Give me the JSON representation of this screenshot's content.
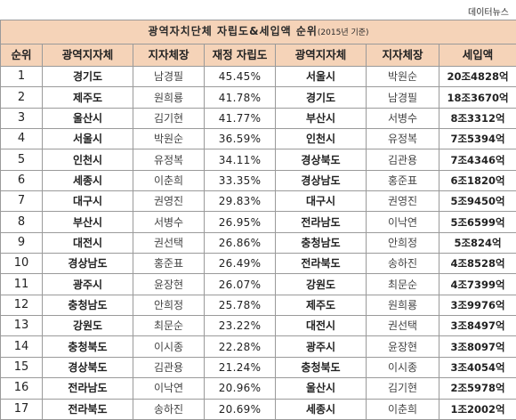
{
  "source_label": "데이터뉴스",
  "title": "광역자치단체 자립도&세입액 순위",
  "title_note": "(2015년 기준)",
  "headers": [
    "순위",
    "광역지자체",
    "지자체장",
    "재정 자립도",
    "광역지자체",
    "지자체장",
    "세입액"
  ],
  "rows": [
    {
      "rank": "1",
      "region_a": "경기도",
      "head_a": "남경필",
      "rate": "45.45%",
      "region_b": "서울시",
      "head_b": "박원순",
      "revenue": "20조4828억"
    },
    {
      "rank": "2",
      "region_a": "제주도",
      "head_a": "원희룡",
      "rate": "41.78%",
      "region_b": "경기도",
      "head_b": "남경필",
      "revenue": "18조3670억"
    },
    {
      "rank": "3",
      "region_a": "울산시",
      "head_a": "김기현",
      "rate": "41.77%",
      "region_b": "부산시",
      "head_b": "서병수",
      "revenue": "8조3312억"
    },
    {
      "rank": "4",
      "region_a": "서울시",
      "head_a": "박원순",
      "rate": "36.59%",
      "region_b": "인천시",
      "head_b": "유정복",
      "revenue": "7조5394억"
    },
    {
      "rank": "5",
      "region_a": "인천시",
      "head_a": "유정복",
      "rate": "34.11%",
      "region_b": "경상북도",
      "head_b": "김관용",
      "revenue": "7조4346억"
    },
    {
      "rank": "6",
      "region_a": "세종시",
      "head_a": "이춘희",
      "rate": "33.35%",
      "region_b": "경상남도",
      "head_b": "홍준표",
      "revenue": "6조1820억"
    },
    {
      "rank": "7",
      "region_a": "대구시",
      "head_a": "권영진",
      "rate": "29.83%",
      "region_b": "대구시",
      "head_b": "권영진",
      "revenue": "5조9450억"
    },
    {
      "rank": "8",
      "region_a": "부산시",
      "head_a": "서병수",
      "rate": "26.95%",
      "region_b": "전라남도",
      "head_b": "이낙연",
      "revenue": "5조6599억"
    },
    {
      "rank": "9",
      "region_a": "대전시",
      "head_a": "권선택",
      "rate": "26.86%",
      "region_b": "충청남도",
      "head_b": "안희정",
      "revenue": "5조824억"
    },
    {
      "rank": "10",
      "region_a": "경상남도",
      "head_a": "홍준표",
      "rate": "26.49%",
      "region_b": "전라북도",
      "head_b": "송하진",
      "revenue": "4조8528억"
    },
    {
      "rank": "11",
      "region_a": "광주시",
      "head_a": "윤장현",
      "rate": "26.07%",
      "region_b": "강원도",
      "head_b": "최문순",
      "revenue": "4조7399억"
    },
    {
      "rank": "12",
      "region_a": "충청남도",
      "head_a": "안희정",
      "rate": "25.78%",
      "region_b": "제주도",
      "head_b": "원희룡",
      "revenue": "3조9976억"
    },
    {
      "rank": "13",
      "region_a": "강원도",
      "head_a": "최문순",
      "rate": "23.22%",
      "region_b": "대전시",
      "head_b": "권선택",
      "revenue": "3조8497억"
    },
    {
      "rank": "14",
      "region_a": "충청북도",
      "head_a": "이시종",
      "rate": "22.28%",
      "region_b": "광주시",
      "head_b": "윤장현",
      "revenue": "3조8097억"
    },
    {
      "rank": "15",
      "region_a": "경상북도",
      "head_a": "김관용",
      "rate": "21.24%",
      "region_b": "충청북도",
      "head_b": "이시종",
      "revenue": "3조4054억"
    },
    {
      "rank": "16",
      "region_a": "전라남도",
      "head_a": "이낙연",
      "rate": "20.96%",
      "region_b": "울산시",
      "head_b": "김기현",
      "revenue": "2조5978억"
    },
    {
      "rank": "17",
      "region_a": "전라북도",
      "head_a": "송하진",
      "rate": "20.69%",
      "region_b": "세종시",
      "head_b": "이춘희",
      "revenue": "1조2002억"
    }
  ],
  "colors": {
    "header_bg": "#f5d3b8",
    "border": "#9a9a9a"
  }
}
